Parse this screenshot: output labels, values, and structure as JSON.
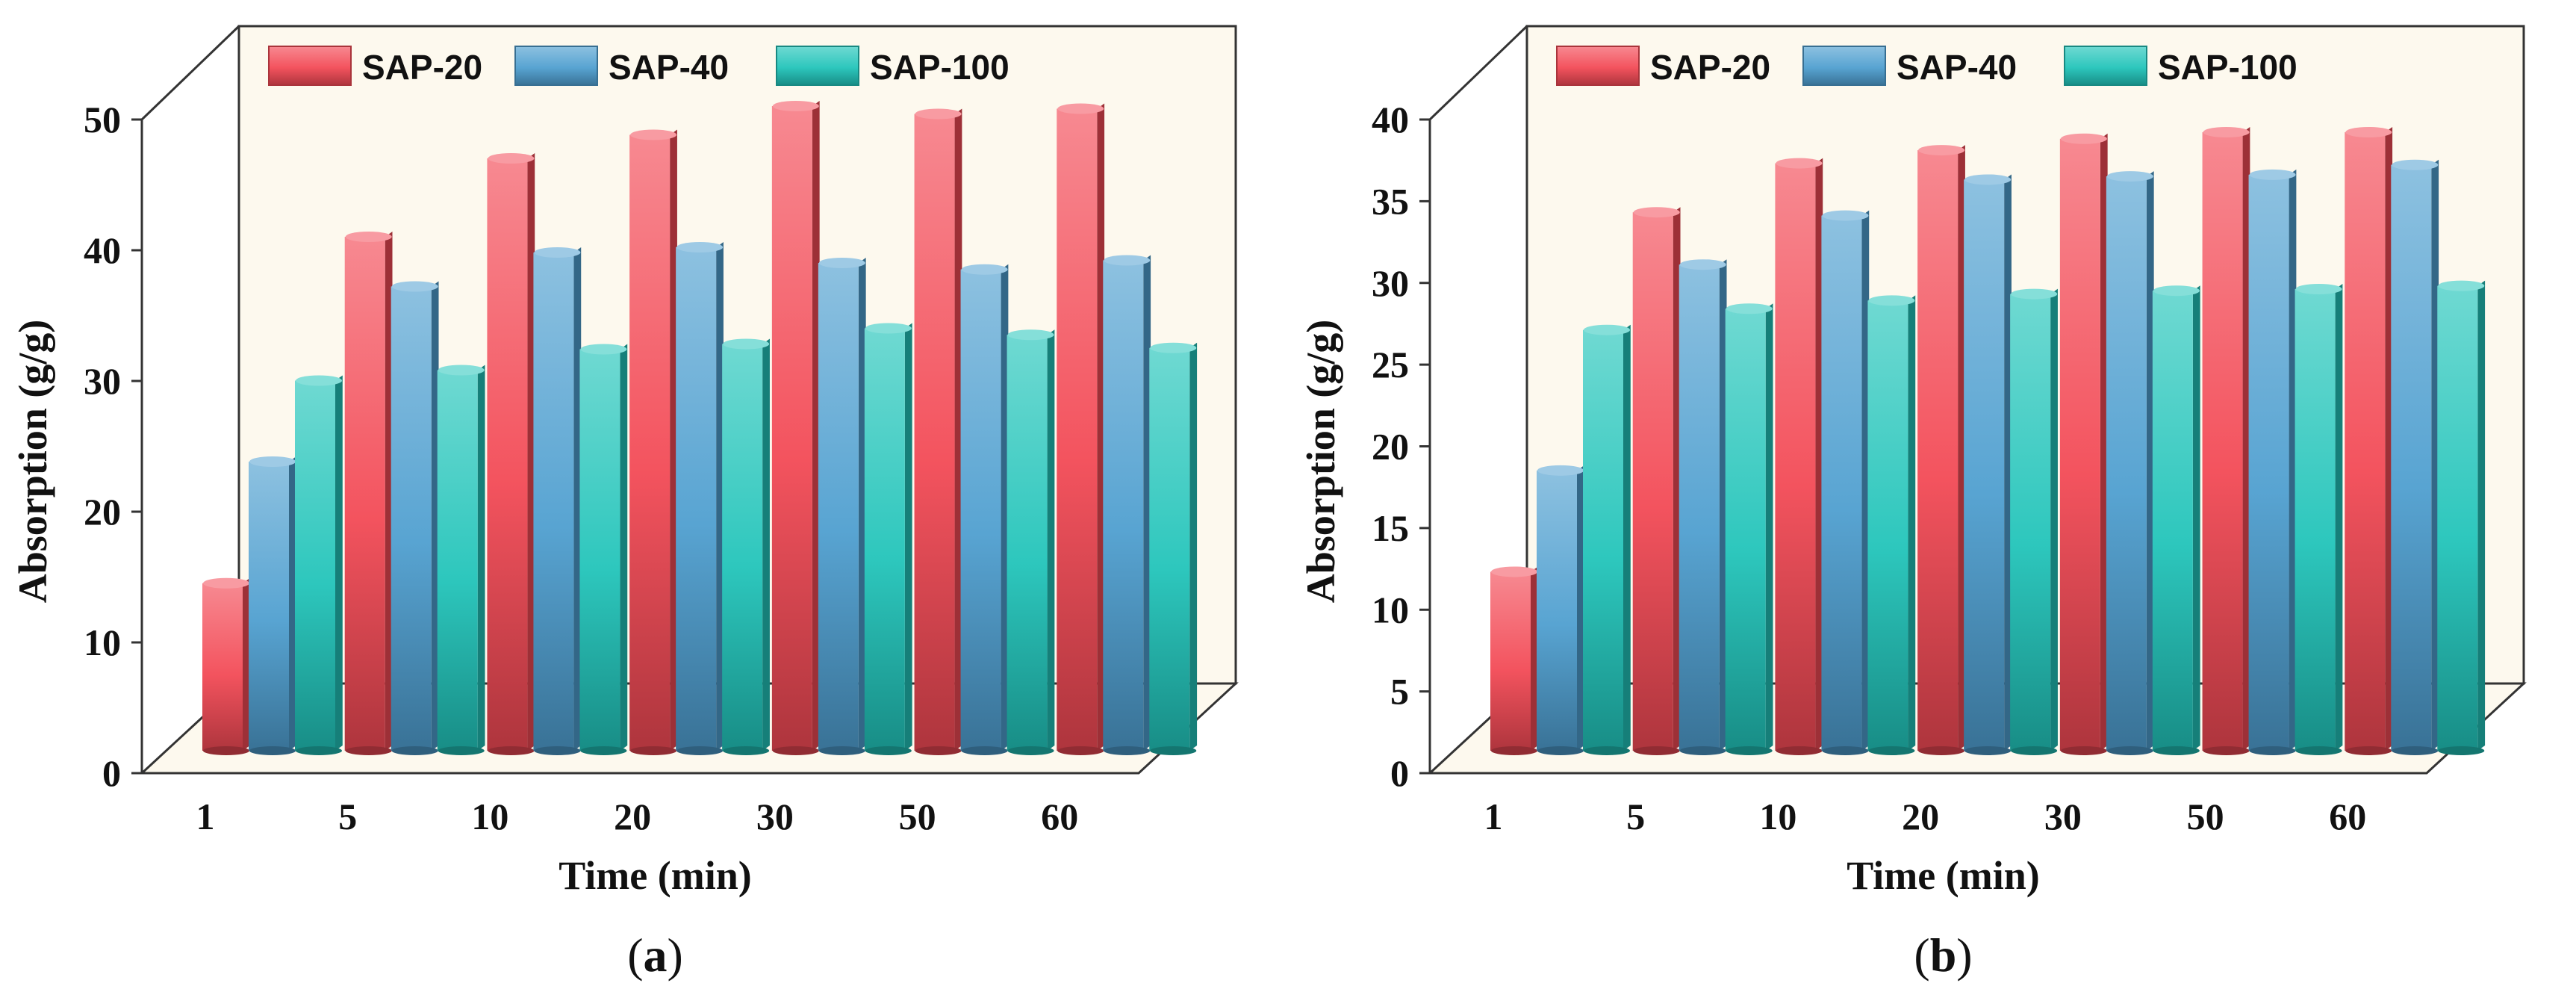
{
  "colors": {
    "SAP-20": "#f24a55",
    "SAP-40": "#4f9fd0",
    "SAP-100": "#22c4ba",
    "background": "#fdf9ee",
    "frame": "#333333"
  },
  "chart_data": [
    {
      "panel": "a",
      "caption_letter": "a",
      "type": "bar",
      "categories": [
        "1",
        "5",
        "10",
        "20",
        "30",
        "50",
        "60"
      ],
      "series": [
        {
          "name": "SAP-20",
          "values": [
            13.5,
            40.0,
            46.0,
            47.8,
            50.0,
            49.4,
            49.8
          ]
        },
        {
          "name": "SAP-40",
          "values": [
            22.8,
            36.2,
            38.8,
            39.2,
            38.0,
            37.5,
            38.2
          ]
        },
        {
          "name": "SAP-100",
          "values": [
            29.0,
            29.8,
            31.4,
            31.8,
            33.0,
            32.5,
            31.5
          ]
        }
      ],
      "xlabel": "Time (min)",
      "ylabel": "Absorption (g/g)",
      "ylim": [
        0,
        50
      ],
      "yticks": [
        "0",
        "10",
        "20",
        "30",
        "40",
        "50"
      ],
      "legend": "top"
    },
    {
      "panel": "b",
      "caption_letter": "b",
      "type": "bar",
      "categories": [
        "1",
        "5",
        "10",
        "20",
        "30",
        "50",
        "60"
      ],
      "series": [
        {
          "name": "SAP-20",
          "values": [
            11.5,
            33.5,
            36.5,
            37.3,
            38.0,
            38.4,
            38.4
          ]
        },
        {
          "name": "SAP-40",
          "values": [
            17.7,
            30.3,
            33.3,
            35.5,
            35.7,
            35.8,
            36.4
          ]
        },
        {
          "name": "SAP-100",
          "values": [
            26.3,
            27.6,
            28.1,
            28.5,
            28.7,
            28.8,
            29.0
          ]
        }
      ],
      "xlabel": "Time (min)",
      "ylabel": "Absorption (g/g)",
      "ylim": [
        0,
        40
      ],
      "yticks": [
        "0",
        "5",
        "10",
        "15",
        "20",
        "25",
        "30",
        "35",
        "40"
      ],
      "legend": "top"
    }
  ]
}
